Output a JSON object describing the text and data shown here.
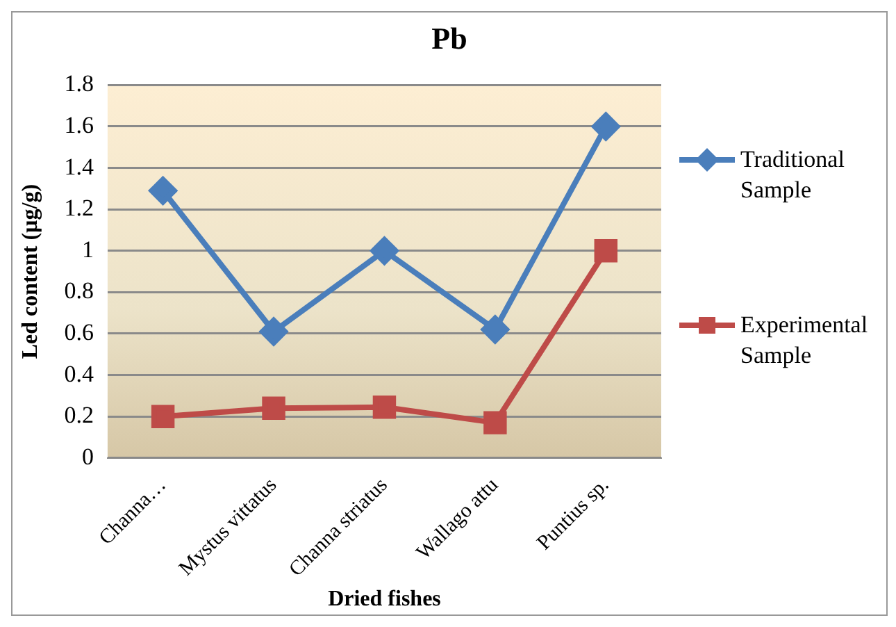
{
  "chart_data": {
    "type": "line",
    "title": "Pb",
    "xlabel": "Dried fishes",
    "ylabel": "Led content (µg/g)",
    "categories": [
      "Channa…",
      "Mystus vittatus",
      "Channa striatus",
      "Wallago attu",
      "Puntius sp."
    ],
    "series": [
      {
        "name": "Traditional Sample",
        "color": "#4a7ebb",
        "marker": "diamond",
        "values": [
          1.29,
          0.61,
          1.0,
          0.62,
          1.6
        ]
      },
      {
        "name": "Experimental Sample",
        "color": "#be4b48",
        "marker": "square",
        "values": [
          0.2,
          0.24,
          0.245,
          0.17,
          1.0
        ]
      }
    ],
    "ylim": [
      0,
      1.8
    ],
    "yticks": [
      0,
      0.2,
      0.4,
      0.6,
      0.8,
      1,
      1.2,
      1.4,
      1.6,
      1.8
    ],
    "grid": "y",
    "legend": "right",
    "line_style": "solid"
  }
}
